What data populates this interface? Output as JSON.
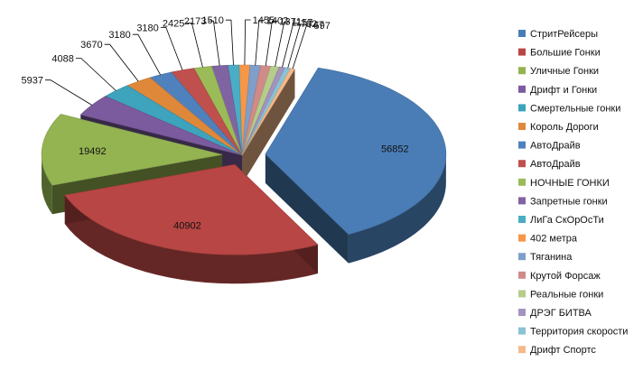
{
  "chart_data": {
    "type": "pie",
    "style": "3d-exploded",
    "title": "",
    "legend_position": "right",
    "categories": [
      "СтритРейсеры",
      "Большие Гонки",
      "Уличные Гонки",
      "Дрифт и Гонки",
      "Смертельные гонки",
      "Король Дороги",
      "АвтоДрайв",
      "АвтоДрайв",
      "НОЧНЫЕ ГОНКИ",
      "Запретные гонки",
      "ЛиГа СкОрОсТи",
      "402 метра",
      "Тяганина",
      "Крутой Форсаж",
      "Реальные гонки",
      "ДРЭГ БИТВА",
      "Территория скорости",
      "Дрифт Спортс"
    ],
    "values": [
      56852,
      40902,
      19492,
      5937,
      4088,
      3670,
      3180,
      3180,
      2425,
      2173,
      1510,
      1455,
      1402,
      1371,
      1157,
      782,
      747,
      597
    ],
    "colors": [
      "#4A7DB5",
      "#B84644",
      "#94B452",
      "#7B5B9E",
      "#3EA3BC",
      "#E0883A",
      "#4F81BD",
      "#C0504D",
      "#9BBB59",
      "#8064A2",
      "#4BACC6",
      "#F79646",
      "#7F9FCA",
      "#D08A88",
      "#B5CC8A",
      "#A493BE",
      "#8AC2D6",
      "#F5B98A"
    ]
  }
}
